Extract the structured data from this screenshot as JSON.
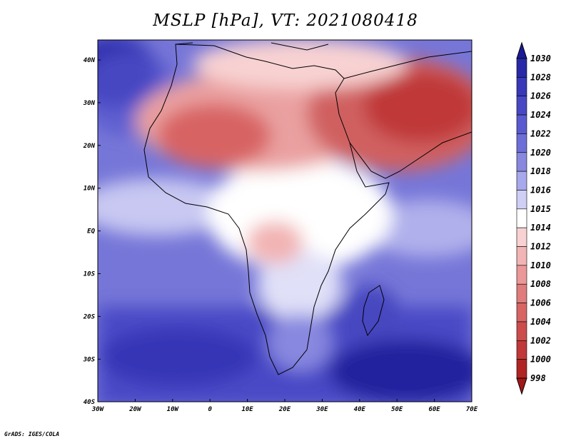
{
  "title": "MSLP [hPa], VT: 2021080418",
  "credit": "GrADS: IGES/COLA",
  "axes": {
    "lon_ticks": [
      "30W",
      "20W",
      "10W",
      "0",
      "10E",
      "20E",
      "30E",
      "40E",
      "50E",
      "60E",
      "70E"
    ],
    "lat_ticks": [
      "40N",
      "30N",
      "20N",
      "10N",
      "EQ",
      "10S",
      "20S",
      "30S",
      "40S"
    ]
  },
  "colorbar": {
    "labels": [
      "1030",
      "1028",
      "1026",
      "1024",
      "1022",
      "1020",
      "1018",
      "1016",
      "1015",
      "1014",
      "1012",
      "1010",
      "1008",
      "1006",
      "1004",
      "1002",
      "1000",
      "998"
    ],
    "colors": [
      "#1a1a96",
      "#2828a8",
      "#3838b8",
      "#4848c4",
      "#5a5ad0",
      "#6e6ed8",
      "#8888e0",
      "#a8a8ec",
      "#cfcff6",
      "#ffffff",
      "#f8d2d2",
      "#f2b4b4",
      "#ea9898",
      "#e07c7c",
      "#d86464",
      "#cc4c4c",
      "#c03838",
      "#b02424",
      "#a01818"
    ]
  },
  "colors": {
    "ocean_high": "#1a1a96",
    "land_low": "#c03838",
    "neutral": "#ffffff"
  }
}
